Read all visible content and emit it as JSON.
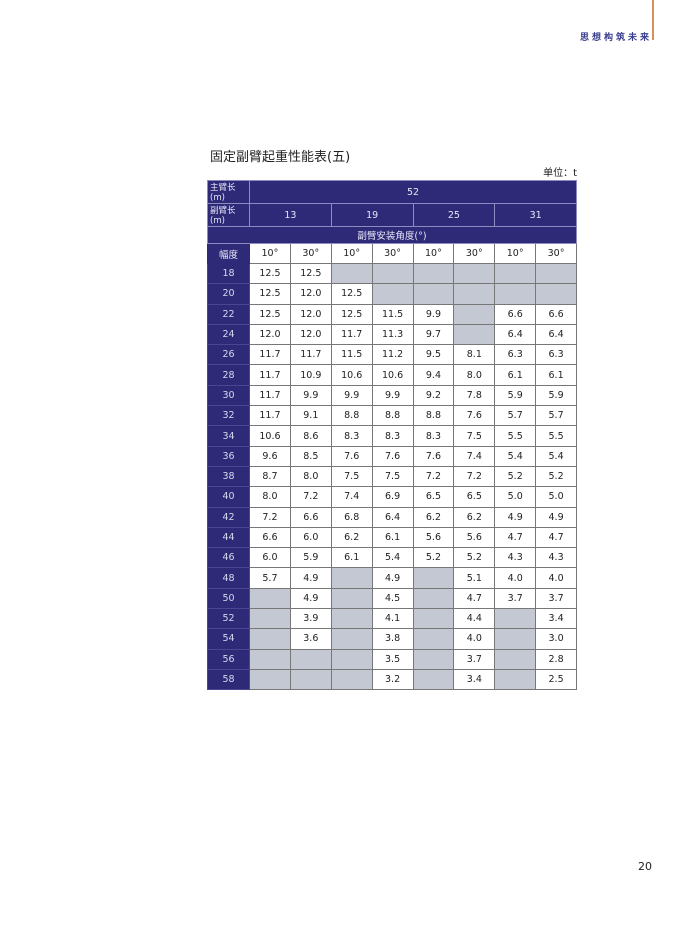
{
  "header": {
    "brand": "思想构筑未来"
  },
  "title": "固定副臂起重性能表(五)",
  "unit": "单位：t",
  "table": {
    "main_boom_label": "主臂长(m)",
    "main_boom_value": "52",
    "jib_label": "副臂长(m)",
    "jib_lengths": [
      "13",
      "19",
      "25",
      "31"
    ],
    "angle_title": "副臂安装角度(°)",
    "radius_label": "幅度",
    "angles": [
      "10°",
      "30°",
      "10°",
      "30°",
      "10°",
      "30°",
      "10°",
      "30°"
    ],
    "rows": [
      {
        "r": "18",
        "v": [
          "12.5",
          "12.5",
          null,
          null,
          null,
          null,
          null,
          null
        ]
      },
      {
        "r": "20",
        "v": [
          "12.5",
          "12.0",
          "12.5",
          null,
          null,
          null,
          null,
          null
        ]
      },
      {
        "r": "22",
        "v": [
          "12.5",
          "12.0",
          "12.5",
          "11.5",
          "9.9",
          null,
          "6.6",
          "6.6"
        ]
      },
      {
        "r": "24",
        "v": [
          "12.0",
          "12.0",
          "11.7",
          "11.3",
          "9.7",
          null,
          "6.4",
          "6.4"
        ]
      },
      {
        "r": "26",
        "v": [
          "11.7",
          "11.7",
          "11.5",
          "11.2",
          "9.5",
          "8.1",
          "6.3",
          "6.3"
        ]
      },
      {
        "r": "28",
        "v": [
          "11.7",
          "10.9",
          "10.6",
          "10.6",
          "9.4",
          "8.0",
          "6.1",
          "6.1"
        ]
      },
      {
        "r": "30",
        "v": [
          "11.7",
          "9.9",
          "9.9",
          "9.9",
          "9.2",
          "7.8",
          "5.9",
          "5.9"
        ]
      },
      {
        "r": "32",
        "v": [
          "11.7",
          "9.1",
          "8.8",
          "8.8",
          "8.8",
          "7.6",
          "5.7",
          "5.7"
        ]
      },
      {
        "r": "34",
        "v": [
          "10.6",
          "8.6",
          "8.3",
          "8.3",
          "8.3",
          "7.5",
          "5.5",
          "5.5"
        ]
      },
      {
        "r": "36",
        "v": [
          "9.6",
          "8.5",
          "7.6",
          "7.6",
          "7.6",
          "7.4",
          "5.4",
          "5.4"
        ]
      },
      {
        "r": "38",
        "v": [
          "8.7",
          "8.0",
          "7.5",
          "7.5",
          "7.2",
          "7.2",
          "5.2",
          "5.2"
        ]
      },
      {
        "r": "40",
        "v": [
          "8.0",
          "7.2",
          "7.4",
          "6.9",
          "6.5",
          "6.5",
          "5.0",
          "5.0"
        ]
      },
      {
        "r": "42",
        "v": [
          "7.2",
          "6.6",
          "6.8",
          "6.4",
          "6.2",
          "6.2",
          "4.9",
          "4.9"
        ]
      },
      {
        "r": "44",
        "v": [
          "6.6",
          "6.0",
          "6.2",
          "6.1",
          "5.6",
          "5.6",
          "4.7",
          "4.7"
        ]
      },
      {
        "r": "46",
        "v": [
          "6.0",
          "5.9",
          "6.1",
          "5.4",
          "5.2",
          "5.2",
          "4.3",
          "4.3"
        ]
      },
      {
        "r": "48",
        "v": [
          "5.7",
          "4.9",
          null,
          "4.9",
          null,
          "5.1",
          "4.0",
          "4.0"
        ]
      },
      {
        "r": "50",
        "v": [
          null,
          "4.9",
          null,
          "4.5",
          null,
          "4.7",
          "3.7",
          "3.7"
        ]
      },
      {
        "r": "52",
        "v": [
          null,
          "3.9",
          null,
          "4.1",
          null,
          "4.4",
          null,
          "3.4"
        ]
      },
      {
        "r": "54",
        "v": [
          null,
          "3.6",
          null,
          "3.8",
          null,
          "4.0",
          null,
          "3.0"
        ]
      },
      {
        "r": "56",
        "v": [
          null,
          null,
          null,
          "3.5",
          null,
          "3.7",
          null,
          "2.8"
        ]
      },
      {
        "r": "58",
        "v": [
          null,
          null,
          null,
          "3.2",
          null,
          "3.4",
          null,
          "2.5"
        ]
      }
    ]
  },
  "page_number": "20",
  "colors": {
    "header_bg": "#2e2a78",
    "empty_cell": "#c3c8d3",
    "accent_line": "#d9905a"
  }
}
